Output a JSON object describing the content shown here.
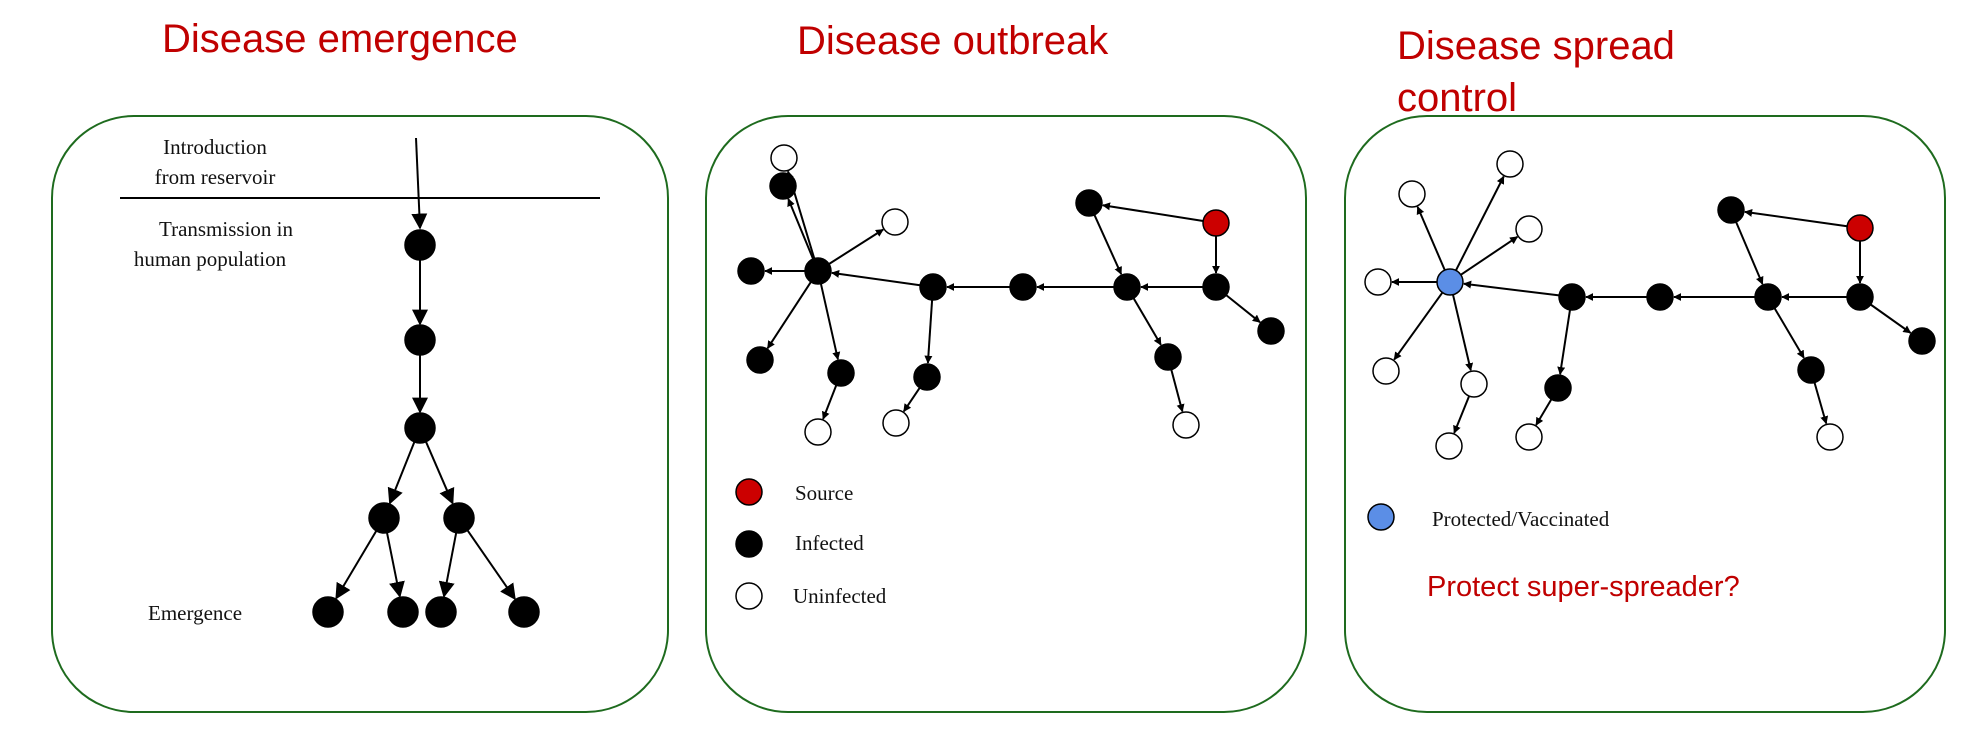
{
  "titles": {
    "emergence": "Disease emergence",
    "outbreak": "Disease outbreak",
    "control": "Disease spread control"
  },
  "panel1": {
    "intro_line1": "Introduction",
    "intro_line2": "from reservoir",
    "transmission_line1": "Transmission in",
    "transmission_line2": "human population",
    "emergence_label": "Emergence"
  },
  "legend": {
    "source": "Source",
    "infected": "Infected",
    "uninfected": "Uninfected",
    "protected": "Protected/Vaccinated"
  },
  "note": "Protect super-spreader?",
  "colors": {
    "title": "#c00000",
    "source": "#cc0000",
    "infected": "#000000",
    "uninfected": "#ffffff",
    "protected": "#5b8ee6",
    "panel_border": "#1e6b1e"
  }
}
